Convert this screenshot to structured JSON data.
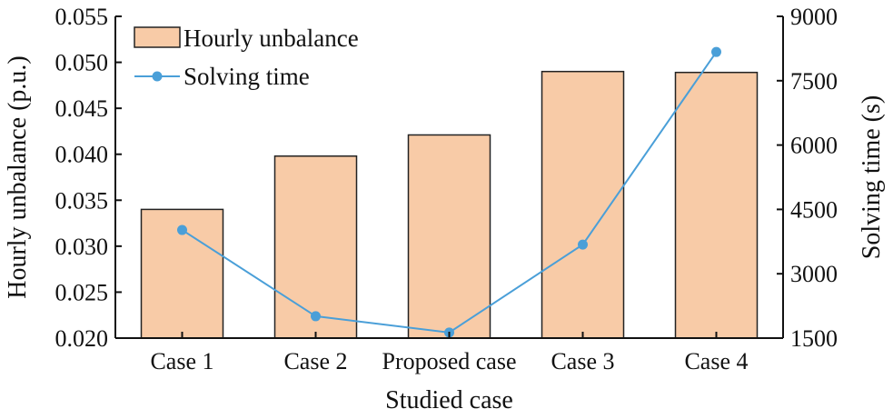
{
  "chart_data": {
    "type": "bar",
    "categories": [
      "Case 1",
      "Case 2",
      "Proposed case",
      "Case 3",
      "Case 4"
    ],
    "xlabel": "Studied case",
    "ylabel": "Hourly unbalance (p.u.)",
    "y2label": "Solving time (s)",
    "ylim": [
      0.02,
      0.055
    ],
    "yticks": [
      "0.020",
      "0.025",
      "0.030",
      "0.035",
      "0.040",
      "0.045",
      "0.050",
      "0.055"
    ],
    "y2lim": [
      1500,
      9000
    ],
    "y2ticks": [
      "1500",
      "3000",
      "4500",
      "6000",
      "7500",
      "9000"
    ],
    "grid": false,
    "legend": "top-left",
    "series": [
      {
        "name": "Hourly unbalance",
        "type": "bar",
        "axis": "left",
        "color": "#f8cba7",
        "edge_color": "#222222",
        "values": [
          0.034,
          0.0398,
          0.0421,
          0.049,
          0.0489
        ]
      },
      {
        "name": "Solving time",
        "type": "line",
        "axis": "right",
        "color": "#4a9fd8",
        "values": [
          4020,
          2010,
          1630,
          3680,
          8170
        ]
      }
    ]
  }
}
